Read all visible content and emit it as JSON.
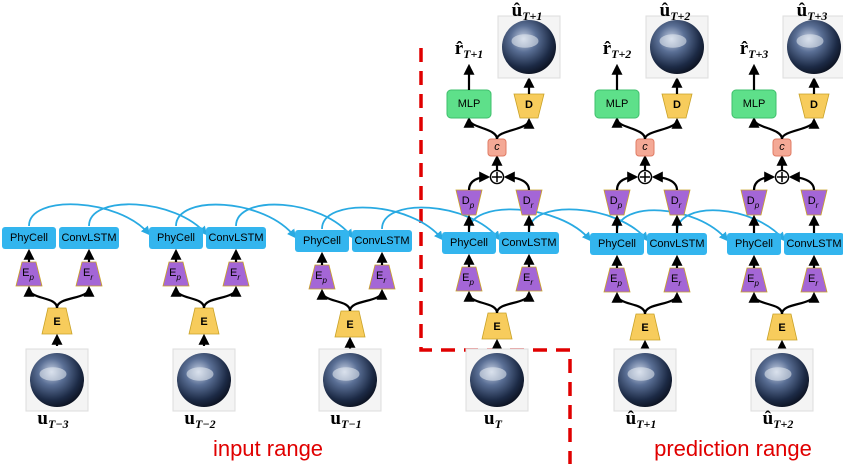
{
  "columns": [
    {
      "phycell": "PhyCell",
      "convlstm": "ConvLSTM",
      "ep": {
        "base": "E",
        "sub": "p"
      },
      "er": {
        "base": "E",
        "sub": "r"
      },
      "e": "E",
      "input": {
        "symbol": "u",
        "sub": "T−3"
      }
    },
    {
      "phycell": "PhyCell",
      "convlstm": "ConvLSTM",
      "ep": {
        "base": "E",
        "sub": "p"
      },
      "er": {
        "base": "E",
        "sub": "r"
      },
      "e": "E",
      "input": {
        "symbol": "u",
        "sub": "T−2"
      }
    },
    {
      "phycell": "PhyCell",
      "convlstm": "ConvLSTM",
      "ep": {
        "base": "E",
        "sub": "p"
      },
      "er": {
        "base": "E",
        "sub": "r"
      },
      "e": "E",
      "input": {
        "symbol": "u",
        "sub": "T−1"
      }
    },
    {
      "phycell": "PhyCell",
      "convlstm": "ConvLSTM",
      "ep": {
        "base": "E",
        "sub": "p"
      },
      "er": {
        "base": "E",
        "sub": "r"
      },
      "e": "E",
      "input": {
        "symbol": "u",
        "sub": "T"
      },
      "head": {
        "dp": {
          "base": "D",
          "sub": "p"
        },
        "dr": {
          "base": "D",
          "sub": "r"
        },
        "c": "c",
        "mlp": "MLP",
        "d": "D",
        "r": {
          "symbol": "r̂",
          "sub": "T+1"
        },
        "u": {
          "symbol": "û",
          "sub": "T+1"
        }
      }
    },
    {
      "phycell": "PhyCell",
      "convlstm": "ConvLSTM",
      "ep": {
        "base": "E",
        "sub": "p"
      },
      "er": {
        "base": "E",
        "sub": "r"
      },
      "e": "E",
      "input": {
        "symbol": "û",
        "sub": "T+1"
      },
      "head": {
        "dp": {
          "base": "D",
          "sub": "p"
        },
        "dr": {
          "base": "D",
          "sub": "r"
        },
        "c": "c",
        "mlp": "MLP",
        "d": "D",
        "r": {
          "symbol": "r̂",
          "sub": "T+2"
        },
        "u": {
          "symbol": "û",
          "sub": "T+2"
        }
      }
    },
    {
      "phycell": "PhyCell",
      "convlstm": "ConvLSTM",
      "ep": {
        "base": "E",
        "sub": "p"
      },
      "er": {
        "base": "E",
        "sub": "r"
      },
      "e": "E",
      "input": {
        "symbol": "û",
        "sub": "T+2"
      },
      "head": {
        "dp": {
          "base": "D",
          "sub": "p"
        },
        "dr": {
          "base": "D",
          "sub": "r"
        },
        "c": "c",
        "mlp": "MLP",
        "d": "D",
        "r": {
          "symbol": "r̂",
          "sub": "T+3"
        },
        "u": {
          "symbol": "û",
          "sub": "T+3"
        }
      }
    }
  ],
  "ranges": {
    "input": "input range",
    "prediction": "prediction range"
  }
}
